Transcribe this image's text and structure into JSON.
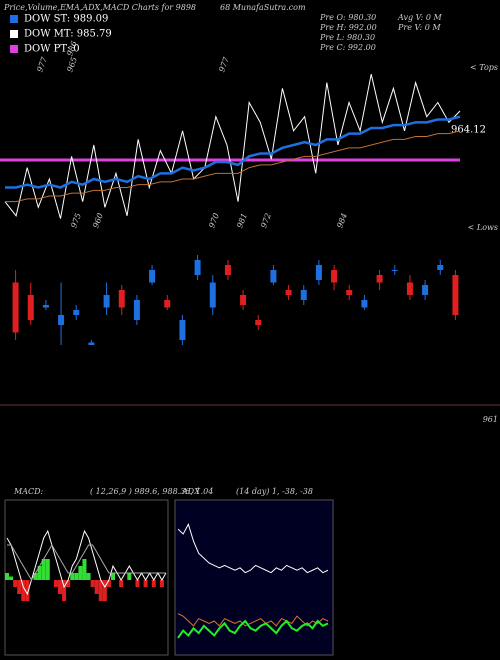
{
  "header": {
    "title": "Price,Volume,EMA,ADX,MACD Charts for 9898",
    "site": "68 MunafaSutra.com"
  },
  "legend": [
    {
      "name": "DOW ST: 989.09",
      "color": "#1e6fe0"
    },
    {
      "name": "DOW MT: 985.79",
      "color": "#ffffff"
    },
    {
      "name": "DOW PT: 0",
      "color": "#e040e0"
    }
  ],
  "info": [
    "Pre  O: 980.30",
    "Pre  H: 992.00",
    "Pre  L: 980.30",
    "Pre  C: 992.00",
    "Avg V: 0  M",
    "Pre  V: 0  M"
  ],
  "labels": {
    "tops": "< Tops",
    "lows": "< Lows",
    "last": "964.12",
    "bottom": "961"
  },
  "top_marks": [
    "977",
    "965",
    "977",
    "986"
  ],
  "low_marks": [
    "975",
    "960",
    "970",
    "981",
    "972",
    "984"
  ],
  "indicators": {
    "macd": "MACD:",
    "macd_values": "( 12,26,9 ) 989.6,  988.36,  1.04",
    "adx": "ADX",
    "adx_values": "(14  day) 1, -38, -38"
  },
  "chart_data": [
    {
      "type": "line",
      "ylim": [
        940,
        1000
      ],
      "series": [
        {
          "name": "Price",
          "color": "#ffffff",
          "values": [
            950,
            945,
            962,
            948,
            958,
            944,
            966,
            950,
            970,
            948,
            960,
            945,
            972,
            955,
            968,
            960,
            975,
            958,
            962,
            980,
            970,
            950,
            985,
            978,
            965,
            990,
            975,
            980,
            960,
            992,
            970,
            985,
            975,
            995,
            978,
            990,
            975,
            992,
            980,
            985,
            978,
            982
          ]
        },
        {
          "name": "EMA",
          "color": "#1e6fe0",
          "values": [
            955,
            955,
            956,
            955,
            956,
            955,
            957,
            956,
            958,
            957,
            958,
            957,
            959,
            958,
            960,
            960,
            962,
            961,
            962,
            964,
            964,
            963,
            966,
            967,
            967,
            969,
            970,
            971,
            970,
            972,
            972,
            974,
            974,
            976,
            976,
            977,
            977,
            978,
            978,
            979,
            979,
            980
          ]
        },
        {
          "name": "EMA2",
          "color": "#c07030",
          "values": [
            950,
            950,
            951,
            951,
            952,
            952,
            953,
            953,
            954,
            954,
            955,
            955,
            956,
            956,
            957,
            957,
            958,
            958,
            959,
            960,
            960,
            960,
            962,
            963,
            963,
            964,
            965,
            966,
            966,
            967,
            968,
            969,
            969,
            970,
            971,
            972,
            972,
            973,
            973,
            974,
            974,
            975
          ]
        }
      ]
    },
    {
      "type": "candlestick",
      "ylim": [
        940,
        1000
      ],
      "open": [
        985,
        980,
        975,
        968,
        972,
        960,
        975,
        982,
        970,
        985,
        978,
        962,
        988,
        975,
        992,
        980,
        970,
        985,
        982,
        978,
        986,
        990,
        982,
        975,
        988,
        990,
        985,
        980,
        990,
        988
      ],
      "close": [
        965,
        970,
        976,
        972,
        974,
        961,
        980,
        975,
        978,
        990,
        975,
        970,
        994,
        985,
        988,
        976,
        968,
        990,
        980,
        982,
        992,
        985,
        980,
        978,
        985,
        990,
        980,
        984,
        992,
        972
      ],
      "high": [
        990,
        985,
        978,
        985,
        976,
        962,
        985,
        984,
        980,
        992,
        980,
        972,
        996,
        988,
        994,
        982,
        972,
        992,
        984,
        984,
        994,
        992,
        984,
        980,
        990,
        992,
        988,
        986,
        994,
        990
      ],
      "low": [
        962,
        968,
        974,
        960,
        970,
        960,
        972,
        972,
        968,
        984,
        974,
        960,
        986,
        972,
        986,
        974,
        966,
        984,
        978,
        976,
        984,
        982,
        978,
        974,
        982,
        988,
        978,
        978,
        988,
        970
      ]
    },
    {
      "type": "macd",
      "ylim": [
        -10,
        10
      ],
      "series": [
        {
          "name": "MACD",
          "color": "#ffffff",
          "values": [
            6,
            5,
            3,
            1,
            -1,
            -2,
            0,
            2,
            4,
            6,
            7,
            5,
            3,
            1,
            -1,
            0,
            2,
            3,
            5,
            7,
            6,
            4,
            2,
            0,
            -1,
            0,
            2,
            1,
            0,
            1,
            2,
            1,
            0,
            1,
            0,
            1,
            0,
            1,
            0,
            1
          ]
        },
        {
          "name": "Signal",
          "color": "#aaaaaa",
          "values": [
            5,
            5,
            4,
            3,
            2,
            1,
            0,
            1,
            2,
            3,
            4,
            5,
            4,
            3,
            2,
            1,
            1,
            2,
            3,
            4,
            5,
            5,
            4,
            3,
            2,
            1,
            1,
            1,
            1,
            1,
            1,
            1,
            1,
            1,
            1,
            1,
            1,
            1,
            1,
            1
          ]
        },
        {
          "name": "Hist",
          "color": "#33dd33",
          "values": [
            1,
            0.5,
            -1,
            -2,
            -3,
            -3,
            0,
            1,
            2,
            3,
            3,
            0,
            -1,
            -2,
            -3,
            -1,
            1,
            1,
            2,
            3,
            1,
            -1,
            -2,
            -3,
            -3,
            -1,
            1,
            0,
            -1,
            0,
            1,
            0,
            -1,
            0,
            -1,
            0,
            -1,
            0,
            -1,
            0
          ]
        }
      ]
    },
    {
      "type": "adx",
      "ylim": [
        0,
        60
      ],
      "series": [
        {
          "name": "ADX",
          "color": "#ffffff",
          "values": [
            50,
            48,
            52,
            45,
            40,
            38,
            36,
            35,
            34,
            35,
            34,
            33,
            34,
            32,
            33,
            35,
            34,
            33,
            32,
            34,
            33,
            35,
            34,
            33,
            34,
            32,
            33,
            34,
            32,
            33
          ]
        },
        {
          "name": "DI-",
          "color": "#e07020",
          "values": [
            15,
            14,
            12,
            10,
            13,
            12,
            11,
            12,
            10,
            13,
            12,
            11,
            12,
            10,
            11,
            12,
            13,
            11,
            12,
            10,
            13,
            12,
            11,
            14,
            12,
            10,
            12,
            11,
            13,
            12
          ]
        },
        {
          "name": "DI+",
          "color": "#22ee22",
          "values": [
            5,
            8,
            6,
            9,
            7,
            10,
            8,
            6,
            9,
            11,
            8,
            7,
            10,
            12,
            9,
            8,
            10,
            11,
            9,
            7,
            10,
            12,
            9,
            8,
            10,
            11,
            9,
            12,
            10,
            11
          ]
        }
      ]
    }
  ]
}
